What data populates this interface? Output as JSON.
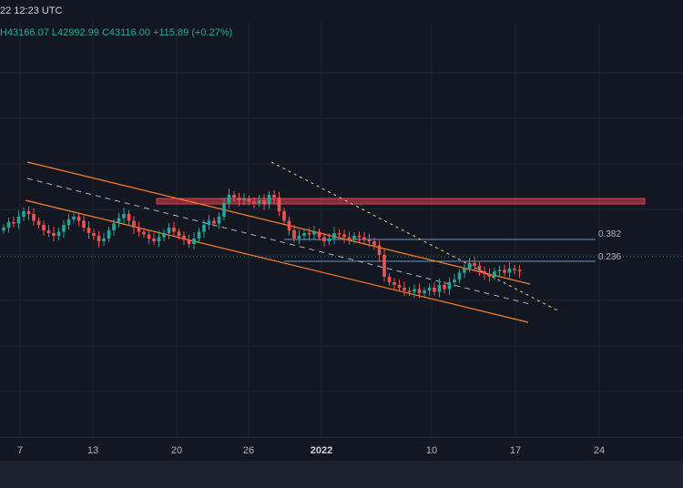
{
  "header": {
    "timestamp": "22 12:23 UTC"
  },
  "ohlc": {
    "high": "H43166.07",
    "low": "L42992.99",
    "close": "C43116.00",
    "change": "+115.89 (+0.27%)"
  },
  "fib_levels": [
    {
      "label": "0.382"
    },
    {
      "label": "0.236"
    }
  ],
  "xaxis": {
    "ticks": [
      {
        "label": "7",
        "year": false
      },
      {
        "label": "13",
        "year": false
      },
      {
        "label": "20",
        "year": false
      },
      {
        "label": "26",
        "year": false
      },
      {
        "label": "2022",
        "year": true
      },
      {
        "label": "10",
        "year": false
      },
      {
        "label": "17",
        "year": false
      },
      {
        "label": "24",
        "year": false
      }
    ]
  },
  "colors": {
    "background": "#131722",
    "bull": "#26a69a",
    "bear": "#ef5350",
    "channel": "#ff7f27",
    "resistance_zone": "#e0404a",
    "fib_line": "#5b9bd5",
    "dashed": "#b2b5be"
  },
  "chart_data": {
    "type": "candlestick",
    "title": "",
    "xlabel": "",
    "ylabel": "",
    "ohlc_last": {
      "high": 43166.07,
      "low": 42992.99,
      "close": 43116.0,
      "change": 115.89,
      "change_pct": 0.27
    },
    "series": [
      {
        "values": [
          0.5,
          0.54,
          0.53,
          0.58,
          0.62,
          0.6,
          0.55,
          0.52,
          0.48,
          0.46,
          0.44,
          0.47,
          0.52,
          0.56,
          0.58,
          0.55,
          0.5,
          0.46,
          0.44,
          0.4,
          0.42,
          0.48,
          0.53,
          0.57,
          0.6,
          0.55,
          0.5,
          0.47,
          0.45,
          0.42,
          0.4,
          0.43,
          0.46,
          0.5,
          0.47,
          0.44,
          0.41,
          0.38,
          0.42,
          0.47,
          0.52,
          0.55,
          0.53,
          0.58,
          0.68,
          0.74,
          0.72,
          0.7,
          0.71,
          0.69,
          0.68,
          0.7,
          0.67,
          0.74,
          0.72,
          0.62,
          0.55,
          0.48,
          0.42,
          0.44,
          0.46,
          0.45,
          0.47,
          0.43,
          0.4,
          0.42,
          0.46,
          0.45,
          0.43,
          0.41,
          0.44,
          0.43,
          0.41,
          0.4,
          0.37,
          0.3,
          0.14,
          0.1,
          0.08,
          0.06,
          0.04,
          0.03,
          0.05,
          0.02,
          0.04,
          0.06,
          0.03,
          0.08,
          0.05,
          0.1,
          0.12,
          0.17,
          0.2,
          0.24,
          0.22,
          0.18,
          0.16,
          0.14,
          0.18,
          0.19,
          0.17,
          0.2,
          0.19,
          0.18
        ]
      }
    ]
  }
}
